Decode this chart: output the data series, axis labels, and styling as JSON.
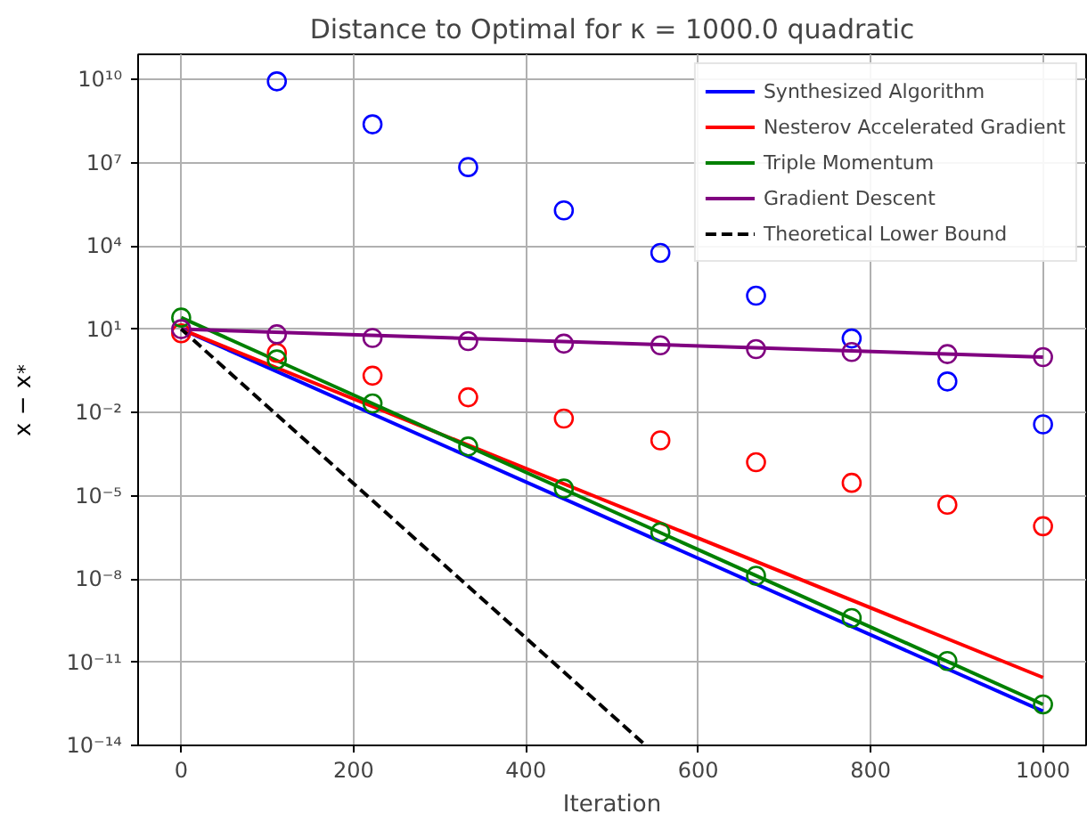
{
  "chart_data": {
    "type": "line",
    "title": "Distance to Optimal for κ = 1000.0 quadratic",
    "xlabel": "Iteration",
    "ylabel": "x − x$^{*}$",
    "log": "y",
    "grid": true,
    "legend": "top right",
    "xlim": [
      -50,
      1050
    ],
    "xticks": [
      0,
      200,
      400,
      600,
      800,
      1000
    ],
    "ylim": [
      1e-14,
      80000000000.0
    ],
    "yticks": [
      {
        "value": 10000000000.0,
        "label": "10¹⁰"
      },
      {
        "value": 10000000.0,
        "label": "10⁷"
      },
      {
        "value": 10000.0,
        "label": "10⁴"
      },
      {
        "value": 10,
        "label": "10¹"
      },
      {
        "value": 0.01,
        "label": "10⁻²"
      },
      {
        "value": 1e-05,
        "label": "10⁻⁵"
      },
      {
        "value": 1e-08,
        "label": "10⁻⁸"
      },
      {
        "value": 1e-11,
        "label": "10⁻¹¹"
      },
      {
        "value": 1e-14,
        "label": "10⁻¹⁴"
      }
    ],
    "series": [
      {
        "name": "Synthesized Algorithm",
        "type": "line",
        "color": "#0000ff",
        "x": [
          0,
          1000
        ],
        "values": [
          10,
          1.7e-13
        ]
      },
      {
        "name": "Nesterov Accelerated Gradient",
        "type": "line",
        "color": "#ff0000",
        "x": [
          0,
          1000
        ],
        "values": [
          10,
          2.8e-12
        ]
      },
      {
        "name": "Triple Momentum",
        "type": "line",
        "color": "#008000",
        "x": [
          0,
          1000
        ],
        "values": [
          26,
          3e-13
        ]
      },
      {
        "name": "Gradient Descent",
        "type": "line",
        "color": "#800080",
        "x": [
          0,
          1000
        ],
        "values": [
          10,
          0.98
        ]
      },
      {
        "name": "Theoretical Lower Bound",
        "type": "line",
        "color": "#000000",
        "line_style": "dashed",
        "x": [
          0,
          539
        ],
        "values": [
          10,
          1e-14
        ]
      },
      {
        "type": "scatter",
        "marker": "circle",
        "color": "#0000ff",
        "x": [
          111,
          222,
          333,
          444,
          556,
          667,
          778,
          889,
          1000
        ],
        "values": [
          8500000000.0,
          240000000.0,
          6900000.0,
          190000.0,
          5600.0,
          160,
          4.6,
          0.13,
          0.0037
        ]
      },
      {
        "type": "scatter",
        "marker": "circle",
        "color": "#ff0000",
        "x": [
          0,
          111,
          222,
          333,
          444,
          556,
          667,
          778,
          889,
          1000
        ],
        "values": [
          7.1,
          1.4,
          0.21,
          0.035,
          0.006,
          0.00098,
          0.00016,
          2.9e-05,
          4.7e-06,
          7.9e-07
        ]
      },
      {
        "type": "scatter",
        "marker": "circle",
        "color": "#008000",
        "x": [
          0,
          111,
          222,
          333,
          444,
          556,
          667,
          778,
          889,
          1000
        ],
        "values": [
          26,
          0.81,
          0.021,
          0.00059,
          1.8e-05,
          4.8e-07,
          1.3e-08,
          3.9e-10,
          1.1e-11,
          3e-13
        ]
      },
      {
        "type": "scatter",
        "marker": "circle",
        "color": "#800080",
        "x": [
          0,
          111,
          222,
          333,
          444,
          556,
          667,
          778,
          889,
          1000
        ],
        "values": [
          10,
          6.5,
          4.8,
          3.7,
          3.0,
          2.6,
          1.9,
          1.5,
          1.26,
          0.98
        ]
      }
    ]
  }
}
